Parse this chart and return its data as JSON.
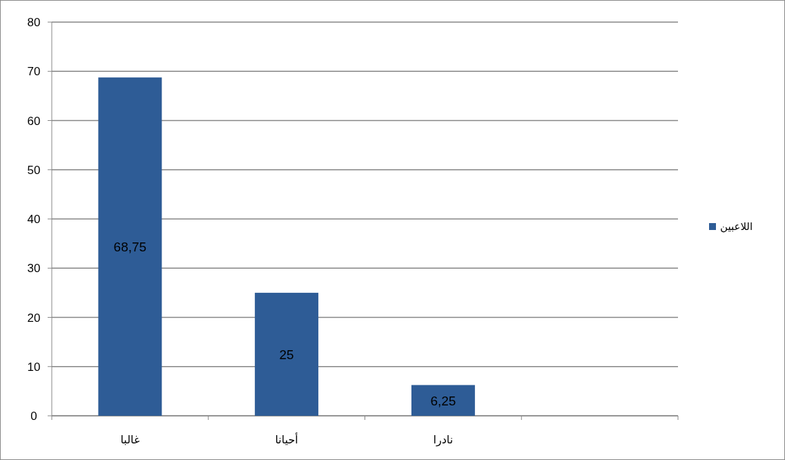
{
  "chart_data": {
    "type": "bar",
    "categories": [
      "غالبا",
      "أحيانا",
      "نادرا",
      null
    ],
    "series": [
      {
        "name": "اللاعبين",
        "color": "#2e5c96",
        "values": [
          68.75,
          25,
          6.25,
          null
        ],
        "value_labels": [
          "68,75",
          "25",
          "6,25",
          null
        ]
      }
    ],
    "ylim": [
      0,
      80
    ],
    "yticks": [
      0,
      10,
      20,
      30,
      40,
      50,
      60,
      70,
      80
    ],
    "grid": "y",
    "legend": "right"
  }
}
